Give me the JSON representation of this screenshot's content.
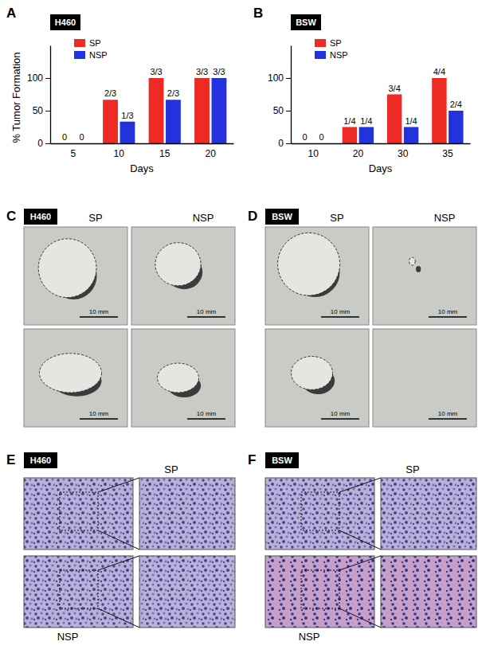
{
  "chart_data": [
    {
      "type": "bar",
      "title": "H460",
      "annotations": [
        "A"
      ],
      "x_label": "Days",
      "y_label": "% Tumor Formation",
      "categories": [
        "5",
        "10",
        "15",
        "20"
      ],
      "series": [
        {
          "name": "SP",
          "color": "#ee2a24",
          "values": [
            0,
            66.7,
            100,
            100
          ],
          "value_labels": [
            "0",
            "2/3",
            "3/3",
            "3/3"
          ]
        },
        {
          "name": "NSP",
          "color": "#2233dd",
          "values": [
            0,
            33.3,
            66.7,
            100
          ],
          "value_labels": [
            "0",
            "1/3",
            "2/3",
            "3/3"
          ]
        }
      ],
      "ylim": [
        0,
        150
      ],
      "yticks": [
        0,
        50,
        100
      ],
      "data_labels": true,
      "legend": "upper-left"
    },
    {
      "type": "bar",
      "title": "BSW",
      "annotations": [
        "B"
      ],
      "x_label": "Days",
      "categories": [
        "10",
        "20",
        "30",
        "35"
      ],
      "series": [
        {
          "name": "SP",
          "color": "#ee2a24",
          "values": [
            0,
            25,
            75,
            100
          ],
          "value_labels": [
            "0",
            "1/4",
            "3/4",
            "4/4"
          ]
        },
        {
          "name": "NSP",
          "color": "#2233dd",
          "values": [
            0,
            25,
            25,
            50
          ],
          "value_labels": [
            "0",
            "1/4",
            "1/4",
            "2/4"
          ]
        }
      ],
      "ylim": [
        0,
        150
      ],
      "yticks": [
        0,
        50,
        100
      ],
      "data_labels": true,
      "legend": "upper-left"
    }
  ],
  "image_panels": [
    {
      "panel": "C",
      "type": "photo",
      "cell_line": "H460",
      "columns": [
        "SP",
        "NSP"
      ],
      "scale_bar": "10 mm"
    },
    {
      "panel": "D",
      "type": "photo",
      "cell_line": "BSW",
      "columns": [
        "SP",
        "NSP"
      ],
      "scale_bar": "10 mm"
    },
    {
      "panel": "E",
      "type": "histology",
      "cell_line": "H460",
      "rows": [
        "SP",
        "NSP"
      ]
    },
    {
      "panel": "F",
      "type": "histology",
      "cell_line": "BSW",
      "rows": [
        "SP",
        "NSP"
      ]
    }
  ]
}
